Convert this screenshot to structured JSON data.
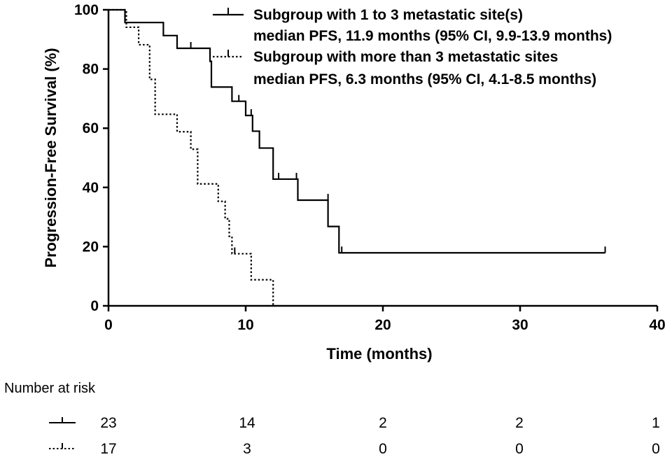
{
  "chart_data": {
    "type": "line",
    "subtype": "kaplan-meier",
    "title": "",
    "xlabel": "Time (months)",
    "ylabel": "Progression-Free Survival (%)",
    "xlim": [
      0,
      40
    ],
    "ylim": [
      0,
      100
    ],
    "x_ticks": [
      0,
      10,
      20,
      30,
      40
    ],
    "y_ticks": [
      0,
      20,
      40,
      60,
      80,
      100
    ],
    "grid": false,
    "legend_position": "top-right",
    "series": [
      {
        "name": "Subgroup with 1 to 3 metastatic site(s)",
        "annotation": "median PFS, 11.9 months (95% CI, 9.9-13.9 months)",
        "line_style": "solid",
        "steps": [
          [
            0,
            100
          ],
          [
            1.2,
            95.7
          ],
          [
            4,
            91.3
          ],
          [
            5,
            87
          ],
          [
            7.4,
            82.6
          ],
          [
            7.5,
            73.9
          ],
          [
            9,
            69.1
          ],
          [
            10,
            64.3
          ],
          [
            10.5,
            59
          ],
          [
            11,
            53.3
          ],
          [
            12,
            47.6
          ],
          [
            12,
            42.8
          ],
          [
            13.8,
            35.7
          ],
          [
            16,
            26.8
          ],
          [
            16.8,
            17.9
          ],
          [
            36.2,
            17.9
          ]
        ],
        "censored": [
          [
            6,
            87
          ],
          [
            9.5,
            69.1
          ],
          [
            10.4,
            64.3
          ],
          [
            12.4,
            42.8
          ],
          [
            13.7,
            42.8
          ],
          [
            16,
            35.7
          ],
          [
            17,
            17.9
          ],
          [
            36.2,
            17.9
          ]
        ]
      },
      {
        "name": "Subgroup with more than 3 metastatic sites",
        "annotation": "median PFS, 6.3 months (95% CI, 4.1-8.5 months)",
        "line_style": "dotted",
        "steps": [
          [
            0,
            100
          ],
          [
            1.3,
            94.1
          ],
          [
            2.2,
            88.2
          ],
          [
            3,
            76.5
          ],
          [
            3.4,
            64.7
          ],
          [
            5,
            58.8
          ],
          [
            6,
            52.9
          ],
          [
            6.5,
            41.2
          ],
          [
            8,
            35.3
          ],
          [
            8.5,
            29.4
          ],
          [
            8.8,
            23.5
          ],
          [
            9,
            17.6
          ],
          [
            10.4,
            8.8
          ],
          [
            12,
            0
          ]
        ],
        "censored": [
          [
            9.2,
            17.6
          ]
        ]
      }
    ],
    "risk_table": {
      "title": "Number at risk",
      "time_points": [
        0,
        10,
        20,
        30,
        40
      ],
      "rows": [
        {
          "series": "Subgroup with 1 to 3 metastatic site(s)",
          "values": [
            "23",
            "14",
            "2",
            "2",
            "1"
          ]
        },
        {
          "series": "Subgroup with more than 3 metastatic sites",
          "values": [
            "17",
            "3",
            "0",
            "0",
            "0"
          ]
        }
      ]
    }
  }
}
